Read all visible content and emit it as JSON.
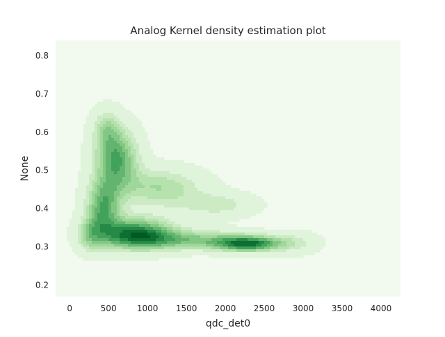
{
  "chart_data": {
    "type": "heatmap",
    "subtype": "kde-contour",
    "title": "Analog Kernel density estimation plot",
    "xlabel": "qdc_det0",
    "ylabel": "None",
    "xlim": [
      -180,
      4250
    ],
    "ylim": [
      0.17,
      0.84
    ],
    "xticks": [
      0,
      500,
      1000,
      1500,
      2000,
      2500,
      3000,
      3500,
      4000
    ],
    "xtick_labels": [
      "0",
      "500",
      "1000",
      "1500",
      "2000",
      "2500",
      "3000",
      "3500",
      "4000"
    ],
    "yticks": [
      0.2,
      0.3,
      0.4,
      0.5,
      0.6,
      0.7,
      0.8
    ],
    "ytick_labels": [
      "0.2",
      "0.3",
      "0.4",
      "0.5",
      "0.6",
      "0.7",
      "0.8"
    ],
    "grid": false,
    "colormap": "Greens",
    "background_color": "#f2f9ef",
    "density_peaks": [
      {
        "x": 850,
        "y": 0.335,
        "level": 1.0
      },
      {
        "x": 2300,
        "y": 0.308,
        "level": 0.95
      },
      {
        "x": 600,
        "y": 0.53,
        "level": 0.8
      },
      {
        "x": 430,
        "y": 0.4,
        "level": 0.75
      },
      {
        "x": 1200,
        "y": 0.45,
        "level": 0.45
      },
      {
        "x": 1900,
        "y": 0.41,
        "level": 0.3
      }
    ]
  }
}
